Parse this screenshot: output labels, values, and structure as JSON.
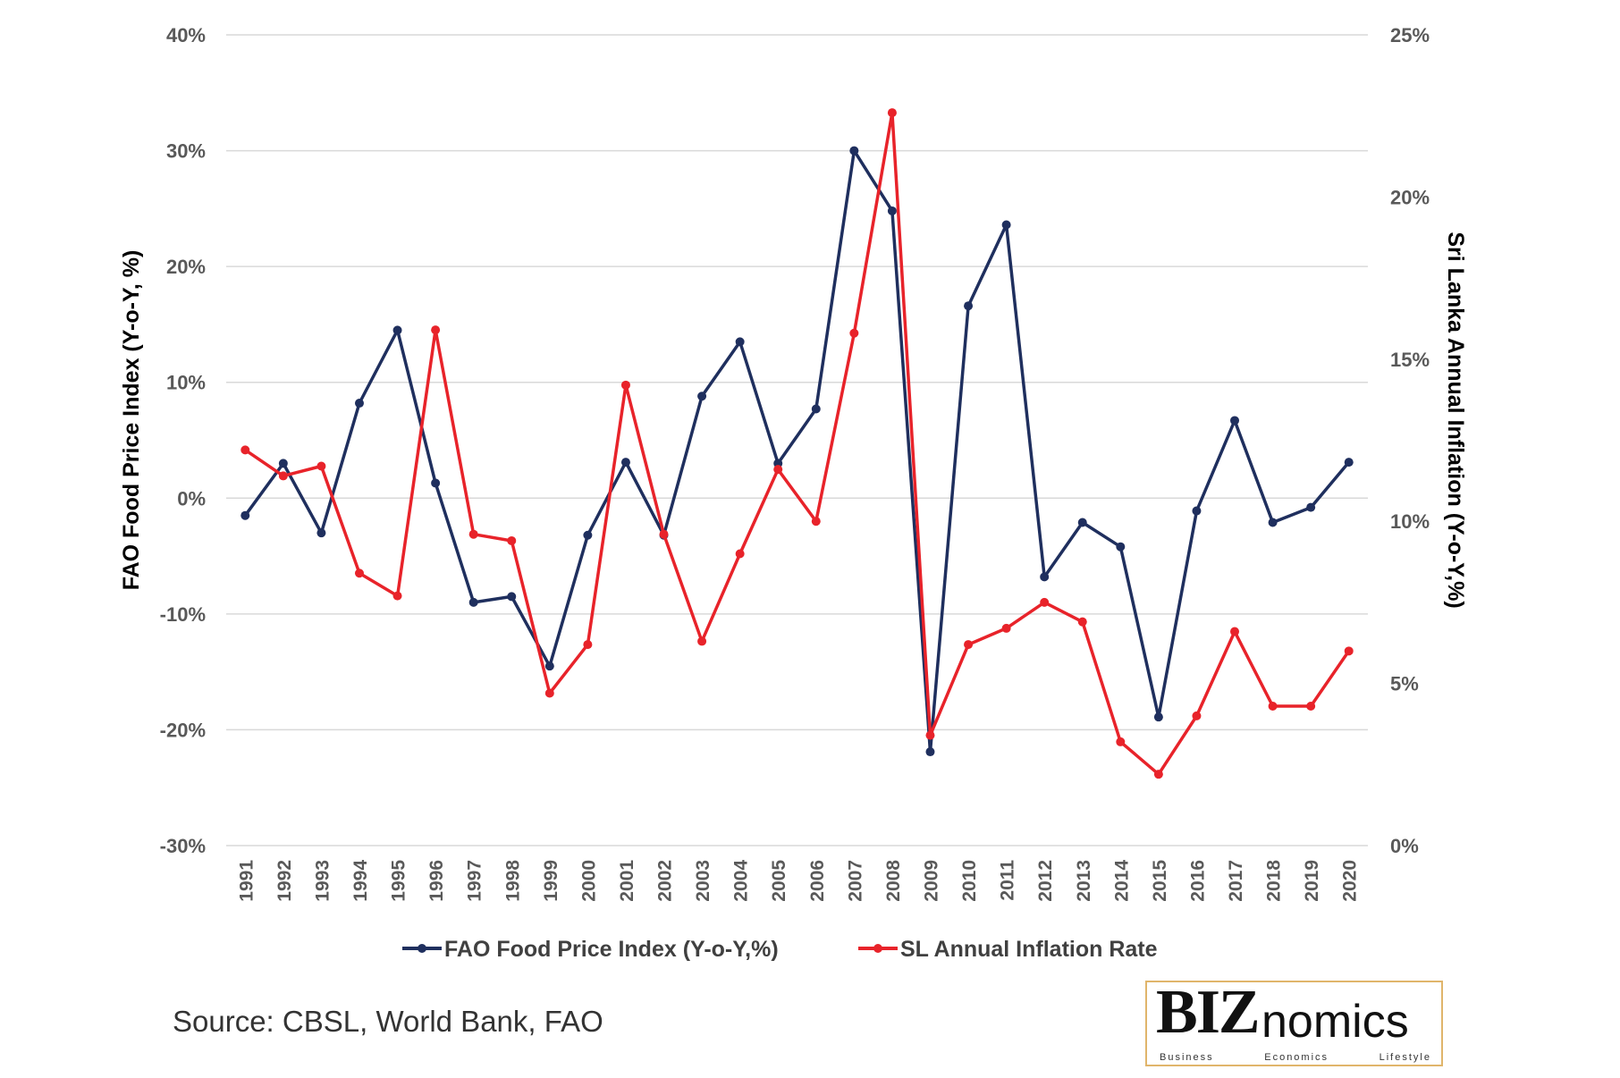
{
  "chart_data": {
    "type": "line",
    "categories": [
      "1991",
      "1992",
      "1993",
      "1994",
      "1995",
      "1996",
      "1997",
      "1998",
      "1999",
      "2000",
      "2001",
      "2002",
      "2003",
      "2004",
      "2005",
      "2006",
      "2007",
      "2008",
      "2009",
      "2010",
      "2011",
      "2012",
      "2013",
      "2014",
      "2015",
      "2016",
      "2017",
      "2018",
      "2019",
      "2020"
    ],
    "series": [
      {
        "name": "FAO Food Price Index (Y-o-Y,%)",
        "axis": "left",
        "color": "#1f2f5e",
        "values": [
          -1.5,
          3.0,
          -3.0,
          8.2,
          14.5,
          1.3,
          -9.0,
          -8.5,
          -14.5,
          -3.2,
          3.1,
          -3.2,
          8.8,
          13.5,
          3.0,
          7.7,
          30.0,
          24.8,
          -21.9,
          16.6,
          23.6,
          -6.8,
          -2.1,
          -4.2,
          -18.9,
          -1.1,
          6.7,
          -2.1,
          -0.8,
          3.1
        ]
      },
      {
        "name": "SL Annual Inflation Rate",
        "axis": "right",
        "color": "#e8232a",
        "values": [
          12.2,
          11.4,
          11.7,
          8.4,
          7.7,
          15.9,
          9.6,
          9.4,
          4.7,
          6.2,
          14.2,
          9.6,
          6.3,
          9.0,
          11.6,
          10.0,
          15.8,
          22.6,
          3.4,
          6.2,
          6.7,
          7.5,
          6.9,
          3.2,
          2.2,
          4.0,
          6.6,
          4.3,
          4.3,
          6.0
        ]
      }
    ],
    "left_axis": {
      "label": "FAO Food Price Index (Y-o-Y, %)",
      "ylim": [
        -30,
        40
      ],
      "ticks": [
        "-30%",
        "-20%",
        "-10%",
        "0%",
        "10%",
        "20%",
        "30%",
        "40%"
      ]
    },
    "right_axis": {
      "label": "Sri Lanka Annual Inflation (Y-o-Y,%)",
      "ylim": [
        0,
        25
      ],
      "ticks": [
        "0%",
        "5%",
        "10%",
        "15%",
        "20%",
        "25%"
      ]
    },
    "grid": true,
    "legend": "bottom"
  },
  "source": "Source: CBSL, World Bank, FAO",
  "logo": {
    "text_bold": "BIZ",
    "text_rest": "nomics",
    "tagline": [
      "Business",
      "Economics",
      "Lifestyle"
    ]
  }
}
